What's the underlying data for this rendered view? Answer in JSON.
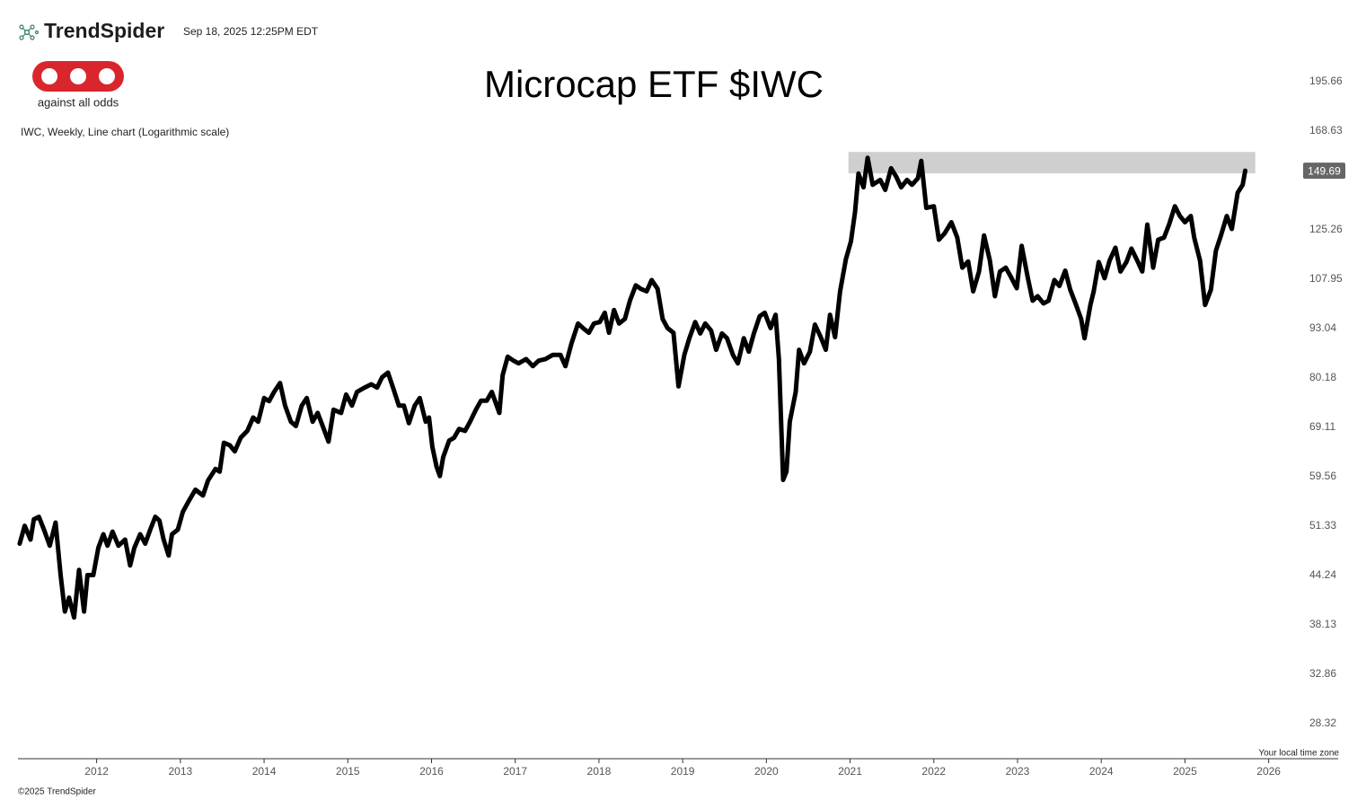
{
  "header": {
    "brand": "TrendSpider",
    "timestamp": "Sep 18, 2025 12:25PM EDT",
    "logo_text": "against all odds"
  },
  "footer": {
    "timezone_note": "Your local time zone",
    "copyright": "©2025 TrendSpider"
  },
  "chart_data": {
    "type": "line",
    "title": "Microcap ETF $IWC",
    "subtitle": "IWC, Weekly, Line chart (Logarithmic scale)",
    "log_scale": true,
    "grid": false,
    "xlim": [
      2011.06,
      2026.83
    ],
    "xticks": [
      2012,
      2013,
      2014,
      2015,
      2016,
      2017,
      2018,
      2019,
      2020,
      2021,
      2022,
      2023,
      2024,
      2025,
      2026
    ],
    "ylim": [
      25.49,
      212.8
    ],
    "yticks": [
      28.32,
      32.86,
      38.13,
      44.24,
      51.33,
      59.56,
      69.11,
      80.18,
      93.04,
      107.95,
      125.26,
      168.63,
      195.66
    ],
    "last_value": 149.69,
    "zone": {
      "x": [
        2020.98,
        2025.84
      ],
      "y": [
        148.5,
        158.4
      ],
      "color": "#cfcfcf"
    },
    "x": [
      2011.08,
      2011.14,
      2011.21,
      2011.25,
      2011.31,
      2011.38,
      2011.44,
      2011.51,
      2011.57,
      2011.62,
      2011.67,
      2011.73,
      2011.79,
      2011.85,
      2011.89,
      2011.96,
      2012.02,
      2012.08,
      2012.13,
      2012.19,
      2012.26,
      2012.34,
      2012.4,
      2012.45,
      2012.52,
      2012.58,
      2012.64,
      2012.7,
      2012.75,
      2012.8,
      2012.86,
      2012.9,
      2012.97,
      2013.03,
      2013.09,
      2013.18,
      2013.27,
      2013.33,
      2013.42,
      2013.47,
      2013.52,
      2013.59,
      2013.65,
      2013.72,
      2013.8,
      2013.87,
      2013.93,
      2014.0,
      2014.06,
      2014.12,
      2014.19,
      2014.25,
      2014.32,
      2014.38,
      2014.45,
      2014.51,
      2014.58,
      2014.64,
      2014.7,
      2014.77,
      2014.83,
      2014.92,
      2014.98,
      2015.05,
      2015.11,
      2015.2,
      2015.28,
      2015.35,
      2015.41,
      2015.48,
      2015.54,
      2015.61,
      2015.67,
      2015.73,
      2015.8,
      2015.86,
      2015.93,
      2015.97,
      2016.01,
      2016.06,
      2016.1,
      2016.14,
      2016.21,
      2016.27,
      2016.33,
      2016.4,
      2016.46,
      2016.53,
      2016.59,
      2016.66,
      2016.72,
      2016.81,
      2016.85,
      2016.91,
      2016.98,
      2017.04,
      2017.13,
      2017.21,
      2017.28,
      2017.36,
      2017.45,
      2017.54,
      2017.6,
      2017.67,
      2017.75,
      2017.82,
      2017.88,
      2017.94,
      2018.01,
      2018.07,
      2018.12,
      2018.18,
      2018.24,
      2018.31,
      2018.37,
      2018.44,
      2018.5,
      2018.57,
      2018.63,
      2018.7,
      2018.76,
      2018.82,
      2018.89,
      2018.95,
      2019.02,
      2019.08,
      2019.15,
      2019.21,
      2019.27,
      2019.34,
      2019.4,
      2019.47,
      2019.53,
      2019.6,
      2019.66,
      2019.73,
      2019.79,
      2019.85,
      2019.92,
      2019.98,
      2020.05,
      2020.11,
      2020.15,
      2020.2,
      2020.24,
      2020.28,
      2020.35,
      2020.39,
      2020.45,
      2020.52,
      2020.58,
      2020.65,
      2020.71,
      2020.76,
      2020.82,
      2020.88,
      2020.95,
      2021.01,
      2021.06,
      2021.1,
      2021.16,
      2021.21,
      2021.27,
      2021.36,
      2021.42,
      2021.49,
      2021.55,
      2021.61,
      2021.68,
      2021.74,
      2021.81,
      2021.85,
      2021.91,
      2022.0,
      2022.06,
      2022.13,
      2022.21,
      2022.28,
      2022.34,
      2022.41,
      2022.47,
      2022.54,
      2022.6,
      2022.67,
      2022.73,
      2022.79,
      2022.86,
      2022.92,
      2022.99,
      2023.05,
      2023.12,
      2023.18,
      2023.24,
      2023.31,
      2023.37,
      2023.44,
      2023.5,
      2023.57,
      2023.63,
      2023.7,
      2023.76,
      2023.8,
      2023.87,
      2023.91,
      2023.97,
      2024.04,
      2024.1,
      2024.17,
      2024.23,
      2024.3,
      2024.36,
      2024.43,
      2024.49,
      2024.55,
      2024.62,
      2024.68,
      2024.75,
      2024.81,
      2024.88,
      2024.94,
      2025.0,
      2025.07,
      2025.11,
      2025.18,
      2025.24,
      2025.31,
      2025.37,
      2025.43,
      2025.5,
      2025.56,
      2025.63,
      2025.69,
      2025.72
    ],
    "series": [
      {
        "color": "#000000",
        "values": [
          48.7,
          51.4,
          49.3,
          52.4,
          52.8,
          50.5,
          48.4,
          51.9,
          44.3,
          39.7,
          41.4,
          39.0,
          45.0,
          39.7,
          44.3,
          44.3,
          48.1,
          50.1,
          48.4,
          50.5,
          48.4,
          49.3,
          45.6,
          48.1,
          50.1,
          48.7,
          50.8,
          52.8,
          52.2,
          49.3,
          47.0,
          50.1,
          50.8,
          53.6,
          55.1,
          57.3,
          56.3,
          58.9,
          61.0,
          60.5,
          66.0,
          65.5,
          64.3,
          67.0,
          68.4,
          71.2,
          70.3,
          75.5,
          74.8,
          76.9,
          79.0,
          73.8,
          70.3,
          69.4,
          73.8,
          75.5,
          70.3,
          72.2,
          69.4,
          66.2,
          72.9,
          72.2,
          76.3,
          73.8,
          76.9,
          77.9,
          78.7,
          77.9,
          80.4,
          81.5,
          77.9,
          73.8,
          73.8,
          70.0,
          73.8,
          75.5,
          70.3,
          71.2,
          65.2,
          61.4,
          59.7,
          63.2,
          66.4,
          67.0,
          68.8,
          68.4,
          70.3,
          72.9,
          74.9,
          74.9,
          76.9,
          72.2,
          80.9,
          85.5,
          84.5,
          83.8,
          84.9,
          83.1,
          84.5,
          84.9,
          86.0,
          86.0,
          83.1,
          88.9,
          94.5,
          93.0,
          91.9,
          94.5,
          94.9,
          97.6,
          91.9,
          98.4,
          94.5,
          95.8,
          101.2,
          106.0,
          104.9,
          104.1,
          107.7,
          104.9,
          95.8,
          93.2,
          91.9,
          78.2,
          86.0,
          90.4,
          94.9,
          91.7,
          94.5,
          92.5,
          87.3,
          91.7,
          90.4,
          86.0,
          83.8,
          90.4,
          86.8,
          91.7,
          96.6,
          97.6,
          93.2,
          97.0,
          84.9,
          59.0,
          60.5,
          70.3,
          76.9,
          87.3,
          83.8,
          86.8,
          94.2,
          90.7,
          87.3,
          97.0,
          90.7,
          104.1,
          114.7,
          121.0,
          132.3,
          148.4,
          142.4,
          155.6,
          143.5,
          145.6,
          141.3,
          150.8,
          147.1,
          142.4,
          145.6,
          143.5,
          146.4,
          154.2,
          133.8,
          134.5,
          121.6,
          124.0,
          128.2,
          122.4,
          111.8,
          113.9,
          104.1,
          110.5,
          123.2,
          114.2,
          102.6,
          110.5,
          111.8,
          108.8,
          105.1,
          119.4,
          108.8,
          101.2,
          102.6,
          100.4,
          101.2,
          107.7,
          105.8,
          110.8,
          104.6,
          99.9,
          95.8,
          90.4,
          99.9,
          104.1,
          113.7,
          108.3,
          114.2,
          118.7,
          110.5,
          113.7,
          118.4,
          114.2,
          110.5,
          127.3,
          111.8,
          121.6,
          122.4,
          127.3,
          134.5,
          130.6,
          128.2,
          130.6,
          122.4,
          114.2,
          99.9,
          104.6,
          117.7,
          123.2,
          130.6,
          125.6,
          140.1,
          143.5,
          149.69
        ]
      }
    ]
  }
}
